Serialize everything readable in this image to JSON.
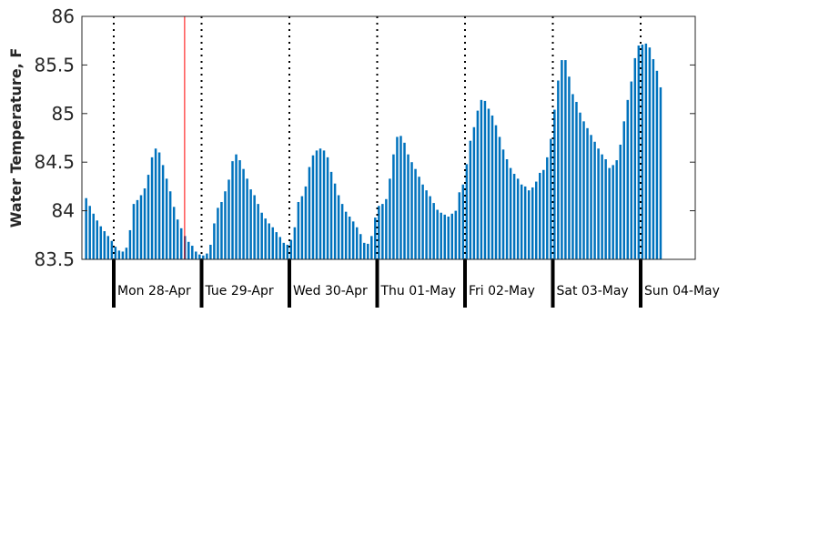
{
  "chart_data": {
    "type": "bar",
    "ylabel": "Water Temperature, F",
    "xlabel": "",
    "title": "",
    "ylim": [
      83.5,
      86
    ],
    "y_ticks": [
      83.5,
      84,
      84.5,
      85,
      85.5,
      86
    ],
    "y_tick_labels": [
      "83.5",
      "84",
      "84.5",
      "85",
      "85.5",
      "86"
    ],
    "interval": "hourly",
    "grid": false,
    "day_labels": [
      "Mon 28-Apr",
      "Tue 29-Apr",
      "Wed 30-Apr",
      "Thu 01-May",
      "Fri 02-May",
      "Sat 03-May",
      "Sun 04-May"
    ],
    "marker_line_color": "#ff0000",
    "marker_hour_index": 27,
    "values": [
      84.13,
      84.05,
      83.97,
      83.9,
      83.84,
      83.79,
      83.74,
      83.69,
      83.63,
      83.59,
      83.58,
      83.62,
      83.8,
      84.07,
      84.11,
      84.16,
      84.23,
      84.37,
      84.55,
      84.64,
      84.6,
      84.47,
      84.33,
      84.2,
      84.04,
      83.91,
      83.82,
      83.74,
      83.68,
      83.64,
      83.58,
      83.55,
      83.54,
      83.56,
      83.65,
      83.87,
      84.03,
      84.09,
      84.2,
      84.32,
      84.51,
      84.58,
      84.52,
      84.43,
      84.33,
      84.22,
      84.16,
      84.07,
      83.98,
      83.92,
      83.87,
      83.83,
      83.78,
      83.73,
      83.67,
      83.65,
      83.7,
      83.83,
      84.09,
      84.15,
      84.25,
      84.45,
      84.57,
      84.62,
      84.64,
      84.62,
      84.55,
      84.4,
      84.28,
      84.16,
      84.07,
      83.99,
      83.94,
      83.89,
      83.83,
      83.76,
      83.67,
      83.66,
      83.74,
      83.93,
      84.05,
      84.07,
      84.12,
      84.33,
      84.58,
      84.76,
      84.77,
      84.7,
      84.58,
      84.5,
      84.43,
      84.35,
      84.27,
      84.21,
      84.15,
      84.08,
      84.01,
      83.98,
      83.96,
      83.94,
      83.97,
      84.0,
      84.19,
      84.27,
      84.48,
      84.72,
      84.86,
      85.03,
      85.14,
      85.13,
      85.05,
      84.98,
      84.88,
      84.76,
      84.63,
      84.53,
      84.44,
      84.38,
      84.33,
      84.27,
      84.25,
      84.21,
      84.24,
      84.3,
      84.39,
      84.42,
      84.55,
      84.74,
      85.04,
      85.34,
      85.55,
      85.55,
      85.38,
      85.2,
      85.12,
      85.01,
      84.92,
      84.85,
      84.78,
      84.71,
      84.64,
      84.58,
      84.53,
      84.44,
      84.47,
      84.52,
      84.68,
      84.92,
      85.14,
      85.33,
      85.57,
      85.7,
      85.71,
      85.72,
      85.68,
      85.56,
      85.44,
      85.27
    ]
  }
}
